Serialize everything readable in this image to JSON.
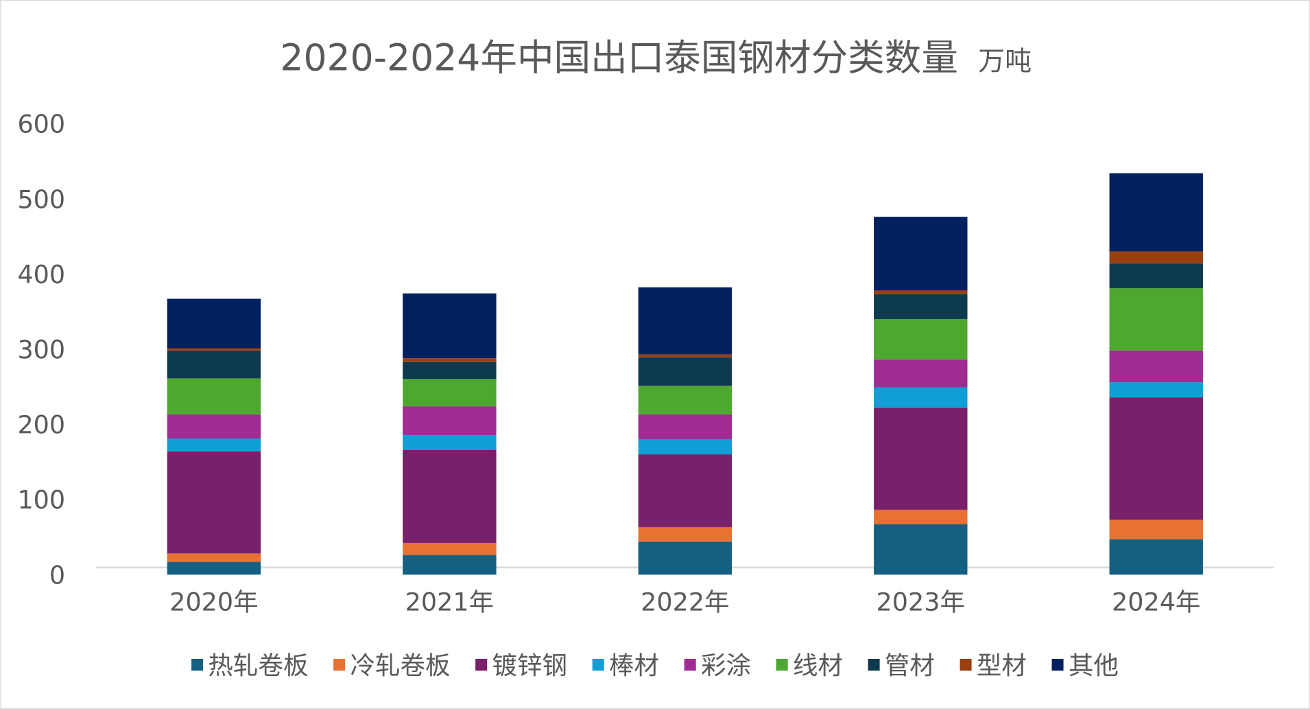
{
  "chart_data": {
    "type": "bar",
    "stacked": true,
    "title": "2020-2024年中国出口泰国钢材分类数量",
    "unit": "万吨",
    "xlabel": "",
    "ylabel": "",
    "ylim": [
      0,
      600
    ],
    "yticks": [
      0,
      100,
      200,
      300,
      400,
      500,
      600
    ],
    "grid": false,
    "legend_position": "bottom",
    "categories": [
      "2020年",
      "2021年",
      "2022年",
      "2023年",
      "2024年"
    ],
    "series": [
      {
        "name": "热轧卷板",
        "color": "#156082",
        "values": [
          17,
          26,
          44,
          67,
          47
        ]
      },
      {
        "name": "冷轧卷板",
        "color": "#E97132",
        "values": [
          11,
          16,
          19,
          19,
          26
        ]
      },
      {
        "name": "镀锌钢",
        "color": "#782069",
        "values": [
          136,
          124,
          97,
          136,
          163
        ]
      },
      {
        "name": "棒材",
        "color": "#0F9ED5",
        "values": [
          17,
          20,
          20,
          27,
          20
        ]
      },
      {
        "name": "彩涂",
        "color": "#A02B93",
        "values": [
          32,
          38,
          33,
          37,
          42
        ]
      },
      {
        "name": "线材",
        "color": "#4EA72E",
        "values": [
          48,
          36,
          38,
          54,
          83
        ]
      },
      {
        "name": "管材",
        "color": "#0E3A4F",
        "values": [
          37,
          23,
          38,
          33,
          33
        ]
      },
      {
        "name": "型材",
        "color": "#9A3F11",
        "values": [
          3,
          5,
          4,
          5,
          16
        ]
      },
      {
        "name": "其他",
        "color": "#002060",
        "values": [
          66,
          86,
          89,
          98,
          104
        ]
      }
    ]
  }
}
